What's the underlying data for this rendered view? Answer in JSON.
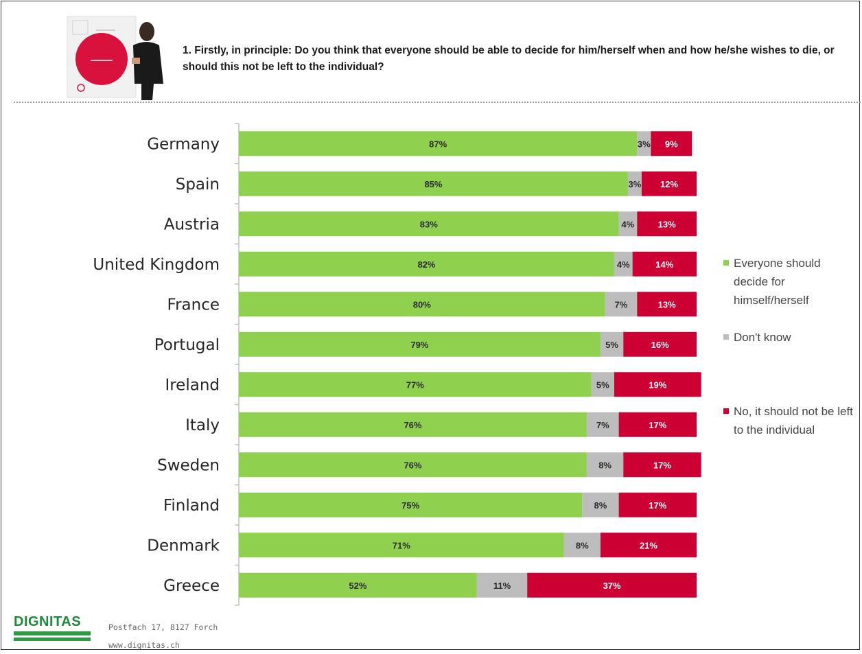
{
  "question": "1. Firstly, in principle: Do you think that everyone should be able to decide for him/herself when and how he/she wishes to die, or should this not be left to the individual?",
  "colors": {
    "yes": "#8fd14f",
    "dont_know": "#bdbdbd",
    "no": "#cc0033",
    "axis": "#bfbfbf"
  },
  "legend": {
    "yes": "Everyone should decide for himself/herself",
    "dont_know": "Don't know",
    "no": "No, it should not be left to the individual"
  },
  "footer": {
    "logo": "DIGNITAS",
    "address": "Postfach 17, 8127 Forch",
    "website": "www.dignitas.ch"
  },
  "chart_data": {
    "type": "bar",
    "orientation": "horizontal",
    "stacked": true,
    "categories": [
      "Germany",
      "Spain",
      "Austria",
      "United Kingdom",
      "France",
      "Portugal",
      "Ireland",
      "Italy",
      "Sweden",
      "Finland",
      "Denmark",
      "Greece"
    ],
    "series": [
      {
        "name": "Everyone should decide for himself/herself",
        "values": [
          87,
          85,
          83,
          82,
          80,
          79,
          77,
          76,
          76,
          75,
          71,
          52
        ]
      },
      {
        "name": "Don't know",
        "values": [
          3,
          3,
          4,
          4,
          7,
          5,
          5,
          7,
          8,
          8,
          8,
          11
        ]
      },
      {
        "name": "No, it should not be left to the individual",
        "values": [
          9,
          12,
          13,
          14,
          13,
          16,
          19,
          17,
          17,
          17,
          21,
          37
        ]
      }
    ],
    "unit": "%",
    "legend_position": "right",
    "grid": false
  }
}
